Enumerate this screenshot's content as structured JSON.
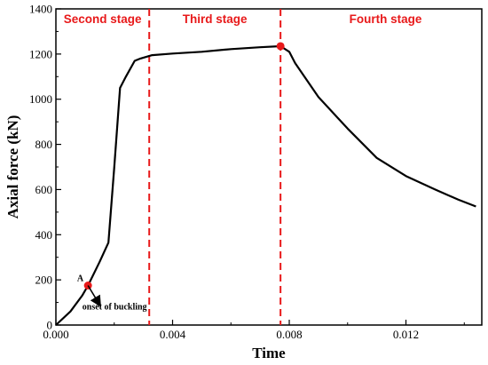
{
  "chart_data": {
    "type": "line",
    "xlabel": "Time",
    "ylabel": "Axial force (kN)",
    "xlim": [
      0.0,
      0.0146
    ],
    "ylim": [
      0,
      1400
    ],
    "x_ticks": [
      0.0,
      0.004,
      0.008,
      0.012
    ],
    "x_tick_labels": [
      "0.000",
      "0.004",
      "0.008",
      "0.012"
    ],
    "y_ticks": [
      0,
      200,
      400,
      600,
      800,
      1000,
      1200,
      1400
    ],
    "y_tick_labels": [
      "0",
      "200",
      "400",
      "600",
      "800",
      "1000",
      "1200",
      "1400"
    ],
    "grid": false,
    "line_color": "#000000",
    "accent_color": "#e8191a",
    "series": [
      {
        "x": [
          0.0,
          0.0005,
          0.0009,
          0.0011,
          0.0015,
          0.0018,
          0.002,
          0.0022,
          0.0024,
          0.0027,
          0.0029,
          0.0033,
          0.004,
          0.005,
          0.006,
          0.007,
          0.0077,
          0.008,
          0.0082,
          0.009,
          0.01,
          0.011,
          0.012,
          0.013,
          0.0138,
          0.0144
        ],
        "y": [
          0,
          60,
          130,
          175,
          280,
          365,
          700,
          1050,
          1100,
          1170,
          1180,
          1195,
          1202,
          1210,
          1222,
          1230,
          1235,
          1210,
          1160,
          1010,
          870,
          740,
          660,
          600,
          555,
          525
        ]
      }
    ],
    "stage_boundaries": [
      0.0032,
      0.0077
    ],
    "stage_labels": [
      "Second stage",
      "Third stage",
      "Fourth stage"
    ],
    "stage_label_x": [
      0.0016,
      0.00545,
      0.0113
    ],
    "points": [
      {
        "x": 0.0011,
        "y": 175,
        "label": "A"
      },
      {
        "x": 0.0077,
        "y": 1235,
        "label": ""
      }
    ],
    "annotation": {
      "text": "onset of buckling",
      "arrow_from": [
        0.0011,
        175
      ],
      "arrow_to": [
        0.0015,
        90
      ]
    }
  }
}
